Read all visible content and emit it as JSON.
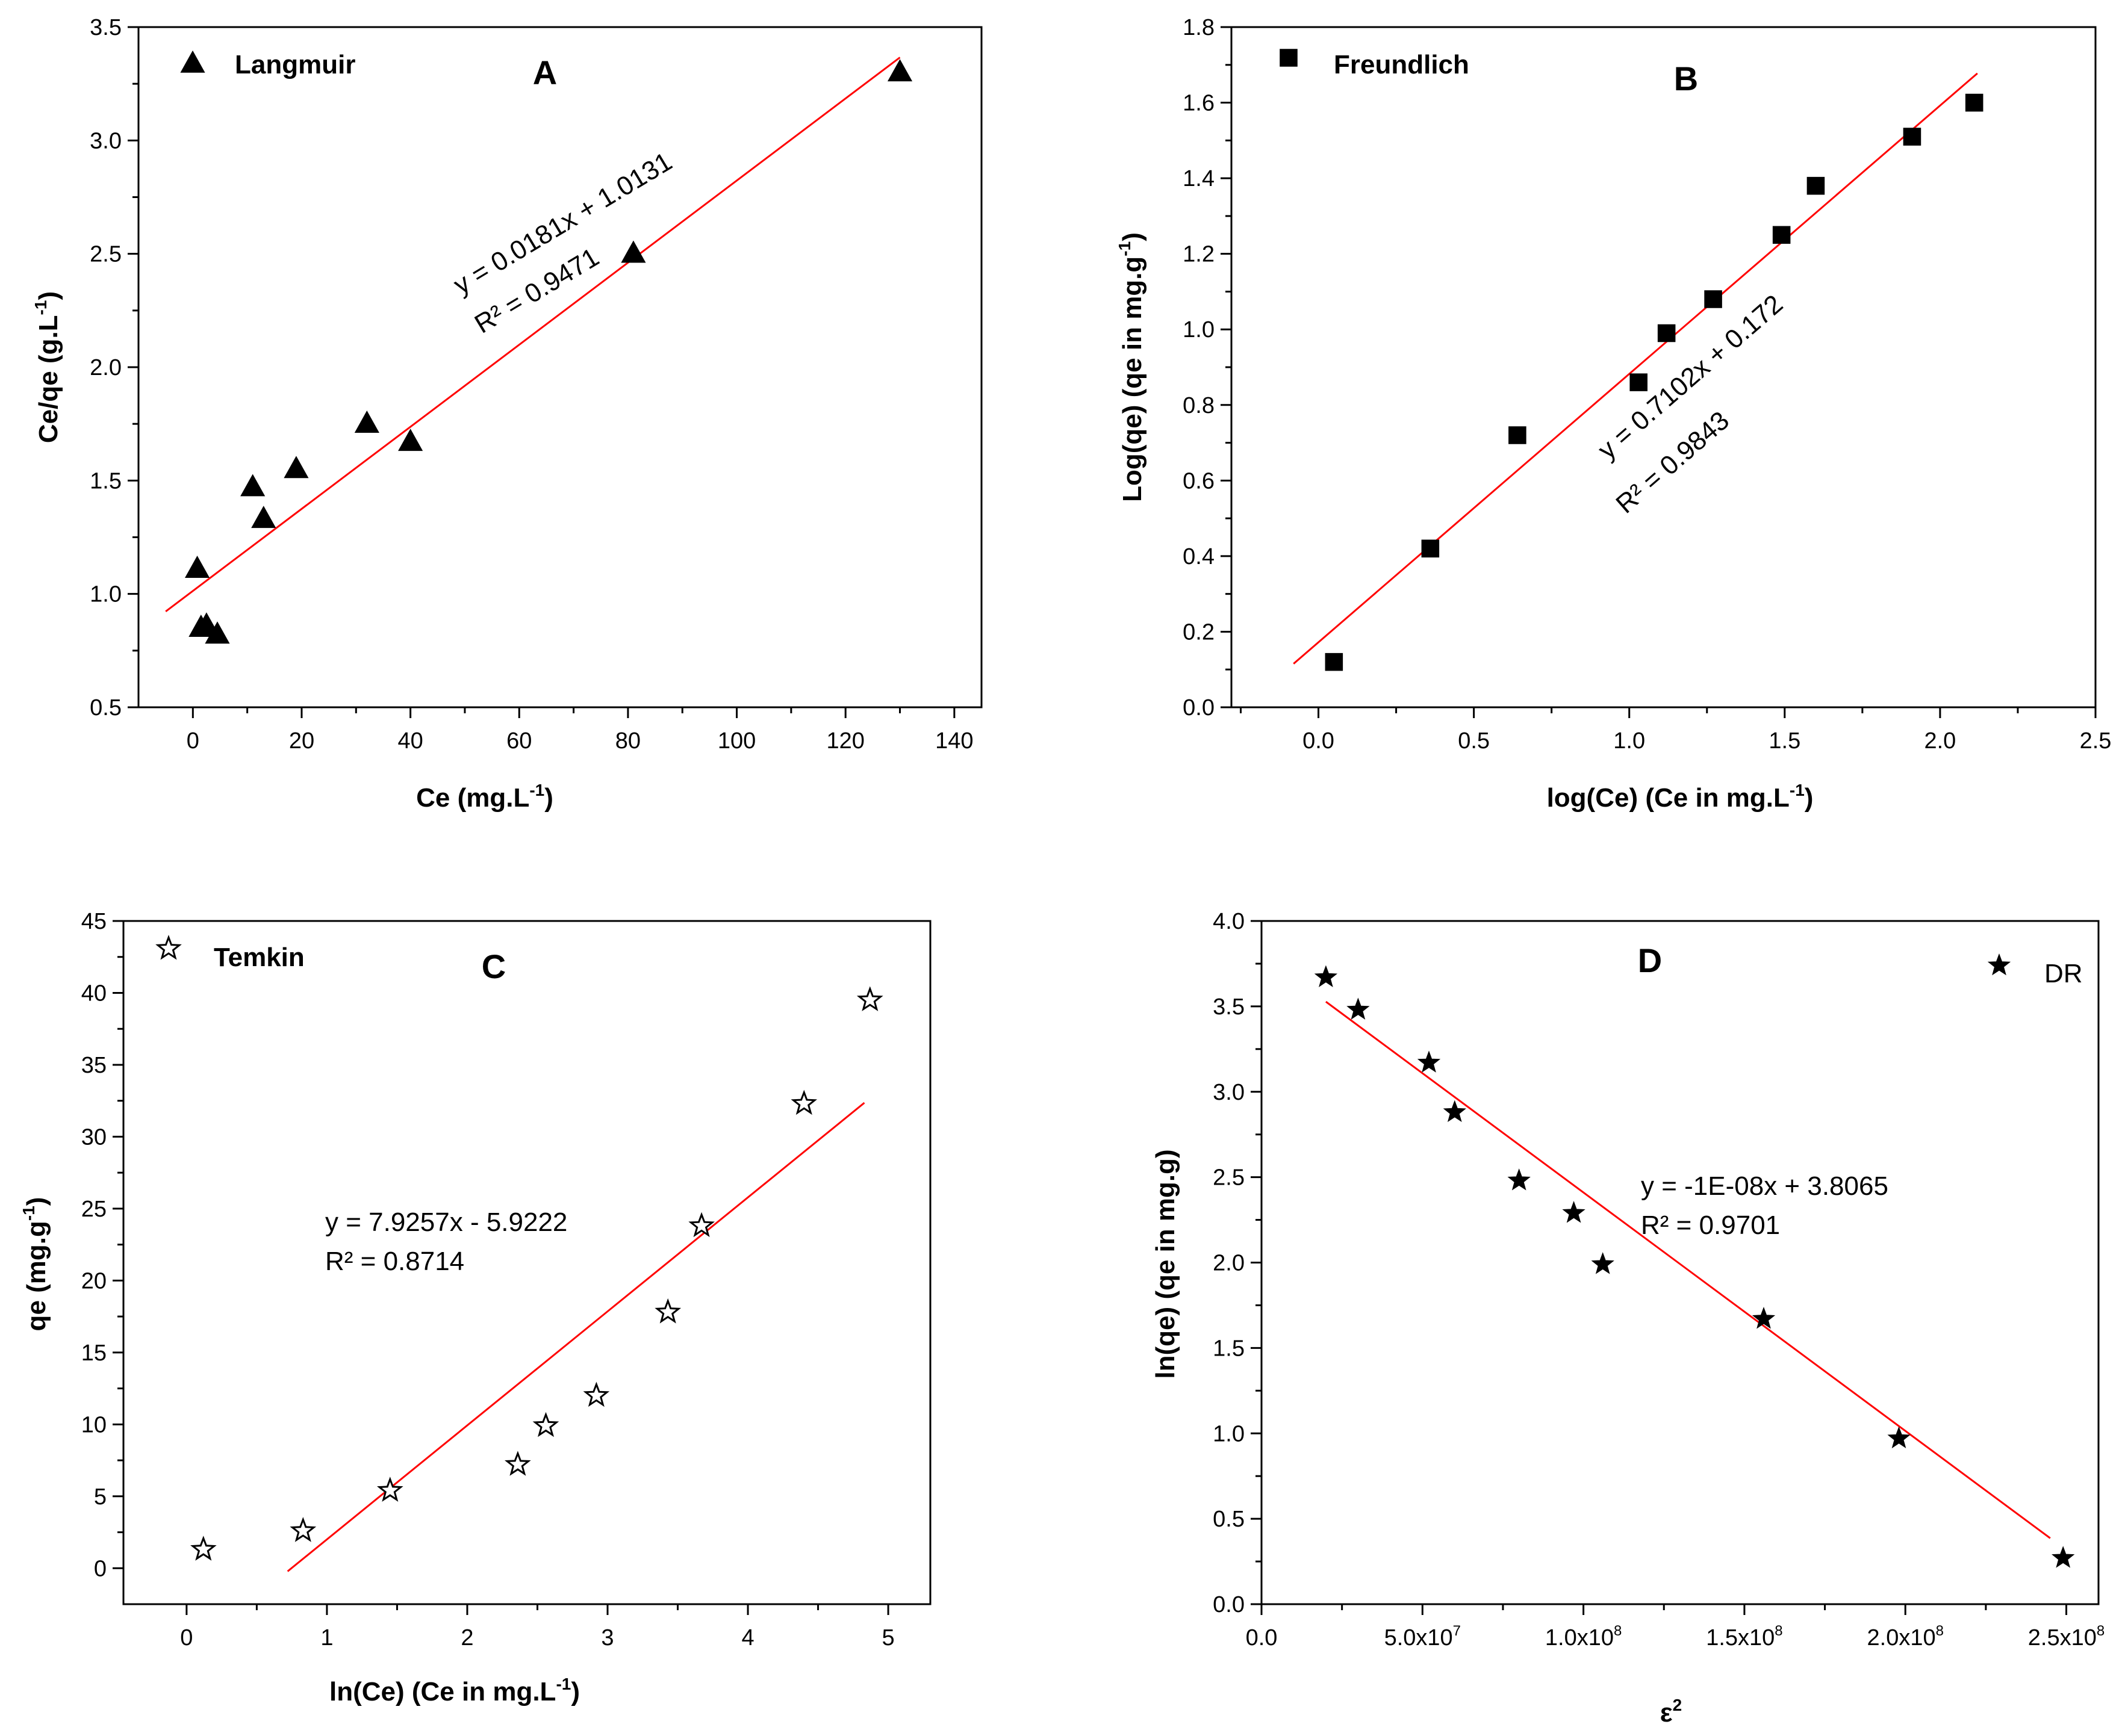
{
  "chart_data": [
    {
      "id": "A",
      "type": "scatter",
      "panel_label": "A",
      "legend": "Langmuir",
      "legend_bold": true,
      "marker": "triangle",
      "xlabel": "Ce (mg.L",
      "xlabel_sup": "-1",
      "xlabel_tail": ")",
      "ylabel": "Ce/qe (g.L",
      "ylabel_sup": "-1",
      "ylabel_tail": ")",
      "xlim": [
        -10,
        145
      ],
      "ylim": [
        0.5,
        3.5
      ],
      "xticks": [
        0,
        20,
        40,
        60,
        80,
        100,
        120,
        140
      ],
      "xtick_labels": [
        "0",
        "20",
        "40",
        "60",
        "80",
        "100",
        "120",
        "140"
      ],
      "yticks": [
        0.5,
        1.0,
        1.5,
        2.0,
        2.5,
        3.0,
        3.5
      ],
      "ytick_labels": [
        "0.5",
        "1.0",
        "1.5",
        "2.0",
        "2.5",
        "3.0",
        "3.5"
      ],
      "x": [
        0.8,
        1.5,
        2.5,
        4.5,
        11,
        13,
        19,
        32,
        40,
        81,
        130
      ],
      "y": [
        1.11,
        0.85,
        0.86,
        0.82,
        1.47,
        1.33,
        1.55,
        1.75,
        1.67,
        2.5,
        3.3
      ],
      "fit": {
        "slope": 0.0181,
        "intercept": 1.0131,
        "x_range": [
          -5,
          130
        ]
      },
      "equation": "y = 0.0181x + 1.0131",
      "r2": "R² = 0.9471",
      "equation_rotated": true
    },
    {
      "id": "B",
      "type": "scatter",
      "panel_label": "B",
      "legend": "Freundlich",
      "legend_bold": true,
      "marker": "square",
      "xlabel": "log(Ce) (Ce in mg.L",
      "xlabel_sup": "-1",
      "xlabel_tail": ")",
      "ylabel": "Log(qe) (qe in mg.g",
      "ylabel_sup": "-1",
      "ylabel_tail": ")",
      "xlim": [
        -0.28,
        2.5
      ],
      "ylim": [
        0.0,
        1.8
      ],
      "xticks": [
        0.0,
        0.5,
        1.0,
        1.5,
        2.0,
        2.5
      ],
      "xtick_labels": [
        "0.0",
        "0.5",
        "1.0",
        "1.5",
        "2.0",
        "2.5"
      ],
      "yticks": [
        0.0,
        0.2,
        0.4,
        0.6,
        0.8,
        1.0,
        1.2,
        1.4,
        1.6,
        1.8
      ],
      "ytick_labels": [
        "0.0",
        "0.2",
        "0.4",
        "0.6",
        "0.8",
        "1.0",
        "1.2",
        "1.4",
        "1.6",
        "1.8"
      ],
      "x": [
        0.05,
        0.36,
        0.64,
        1.03,
        1.12,
        1.27,
        1.49,
        1.6,
        1.91,
        2.11
      ],
      "y": [
        0.12,
        0.42,
        0.72,
        0.86,
        0.99,
        1.08,
        1.25,
        1.38,
        1.51,
        1.6
      ],
      "fit": {
        "slope": 0.7102,
        "intercept": 0.172,
        "x_range": [
          -0.08,
          2.12
        ]
      },
      "equation": "y = 0.7102x + 0.172",
      "r2": "R² = 0.9843",
      "equation_rotated": true
    },
    {
      "id": "C",
      "type": "scatter",
      "panel_label": "C",
      "legend": "Temkin",
      "legend_bold": true,
      "marker": "star-open",
      "xlabel": "ln(Ce) (Ce in mg.L",
      "xlabel_sup": "-1",
      "xlabel_tail": ")",
      "ylabel": "qe (mg.g",
      "ylabel_sup": "-1",
      "ylabel_tail": ")",
      "xlim": [
        -0.45,
        5.3
      ],
      "ylim": [
        -2.5,
        45
      ],
      "xticks": [
        0,
        1,
        2,
        3,
        4,
        5
      ],
      "xtick_labels": [
        "0",
        "1",
        "2",
        "3",
        "4",
        "5"
      ],
      "yticks": [
        0,
        5,
        10,
        15,
        20,
        25,
        30,
        35,
        40,
        45
      ],
      "ytick_labels": [
        "0",
        "5",
        "10",
        "15",
        "20",
        "25",
        "30",
        "35",
        "40",
        "45"
      ],
      "x": [
        0.12,
        0.83,
        1.45,
        2.36,
        2.56,
        2.92,
        3.43,
        3.67,
        4.4,
        4.87
      ],
      "y": [
        1.3,
        2.6,
        5.4,
        7.2,
        9.9,
        12.0,
        17.8,
        23.8,
        32.3,
        39.5
      ],
      "fit": {
        "slope": 7.9257,
        "intercept": -5.9222,
        "x_range": [
          0.72,
          4.83
        ]
      },
      "equation": "y = 7.9257x - 5.9222",
      "r2": "R² = 0.8714",
      "equation_rotated": false
    },
    {
      "id": "D",
      "type": "scatter",
      "panel_label": "D",
      "legend": "DR",
      "legend_bold": false,
      "marker": "star",
      "xlabel": "ε",
      "xlabel_sup": "2",
      "xlabel_tail": "",
      "ylabel": "ln(qe) (qe in mg.g)",
      "ylabel_sup": "",
      "ylabel_tail": "",
      "xlim": [
        0,
        260000000
      ],
      "ylim": [
        0.0,
        4.0
      ],
      "xticks": [
        0,
        50000000,
        100000000,
        150000000,
        200000000,
        250000000
      ],
      "xtick_labels": [
        "0.0",
        "5.0x10",
        "1.0x10",
        "1.5x10",
        "2.0x10",
        "2.5x10"
      ],
      "xtick_sups": [
        "",
        "7",
        "8",
        "8",
        "8",
        "8"
      ],
      "yticks": [
        0.0,
        0.5,
        1.0,
        1.5,
        2.0,
        2.5,
        3.0,
        3.5,
        4.0
      ],
      "ytick_labels": [
        "0.0",
        "0.5",
        "1.0",
        "1.5",
        "2.0",
        "2.5",
        "3.0",
        "3.5",
        "4.0"
      ],
      "x": [
        20000000,
        30000000,
        52000000,
        60000000,
        80000000,
        97000000,
        106000000,
        156000000,
        198000000,
        249000000
      ],
      "y": [
        3.67,
        3.48,
        3.17,
        2.88,
        2.48,
        2.29,
        1.99,
        1.67,
        0.97,
        0.27
      ],
      "fit": {
        "slope": -1.396e-08,
        "intercept": 3.8065,
        "x_range": [
          20000000,
          245000000
        ]
      },
      "equation": "y = -1E-08x + 3.8065",
      "r2": "R² = 0.9701",
      "equation_rotated": false
    }
  ],
  "colors": {
    "fit_line": "#ff0000",
    "marker": "#000000",
    "axis": "#000000"
  }
}
